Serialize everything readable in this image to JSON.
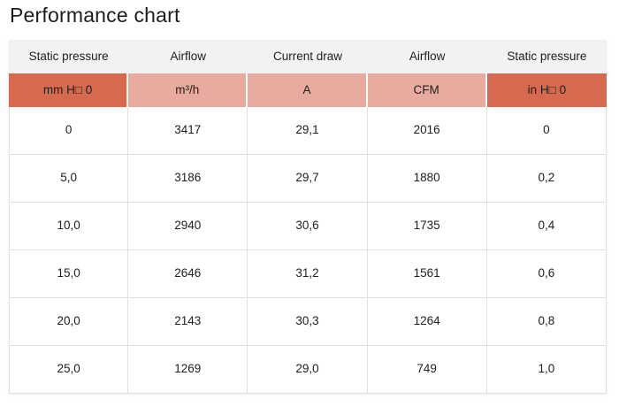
{
  "chart_data": {
    "type": "table",
    "title": "Performance chart",
    "columns": [
      "Static pressure",
      "Airflow",
      "Current draw",
      "Airflow",
      "Static pressure"
    ],
    "units": [
      "mm H□ 0",
      "m³/h",
      "A",
      "CFM",
      "in H□ 0"
    ],
    "rows": [
      [
        "0",
        "3417",
        "29,1",
        "2016",
        "0"
      ],
      [
        "5,0",
        "3186",
        "29,7",
        "1880",
        "0,2"
      ],
      [
        "10,0",
        "2940",
        "30,6",
        "1735",
        "0,4"
      ],
      [
        "15,0",
        "2646",
        "31,2",
        "1561",
        "0,6"
      ],
      [
        "20,0",
        "2143",
        "30,3",
        "1264",
        "0,8"
      ],
      [
        "25,0",
        "1269",
        "29,0",
        "749",
        "1,0"
      ]
    ],
    "layout_hints": {
      "header_background": "#f2f2f2",
      "unit_row_dark_background": "#d7694f",
      "unit_row_light_background": "#e9aba0",
      "unit_cell_styles": [
        "dark",
        "light",
        "light",
        "light",
        "dark"
      ],
      "border_color": "#e0e0e0",
      "text_color": "#212121",
      "grid": "on",
      "decimal_separator": ","
    }
  }
}
